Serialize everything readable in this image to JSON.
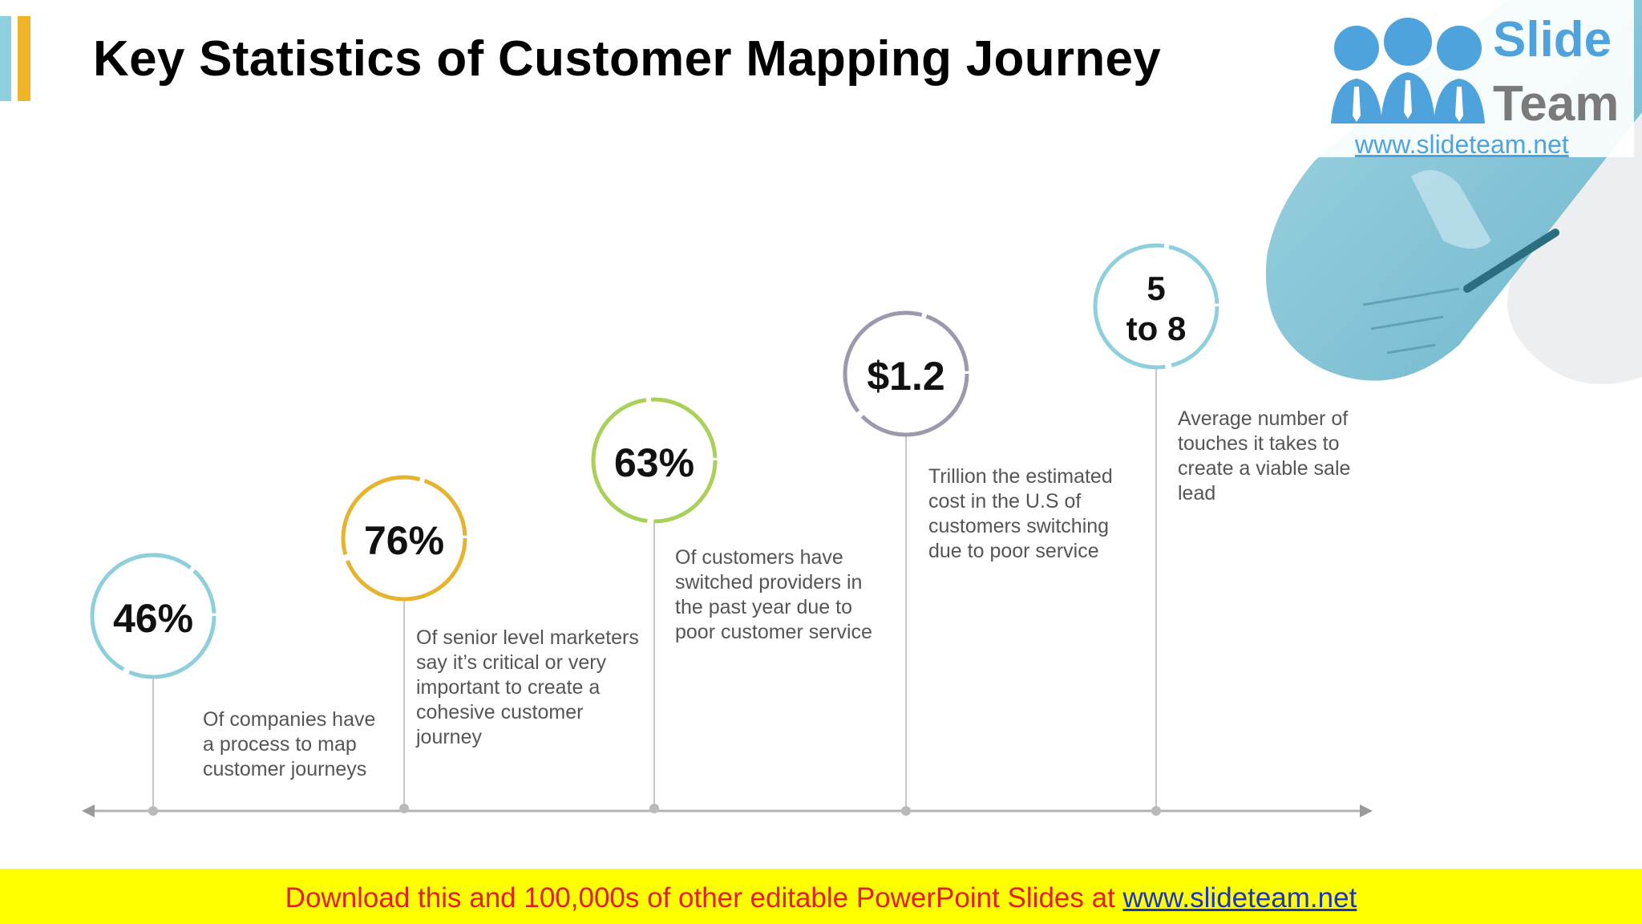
{
  "title": "Key Statistics of Customer Mapping Journey",
  "logo": {
    "word1": "Slide",
    "word2": "Team",
    "url": "www.slideteam.net"
  },
  "stats": [
    {
      "value": "46%",
      "text": "Of companies have a process to map customer journeys",
      "color": "#8ecfdc"
    },
    {
      "value": "76%",
      "text": "Of senior level marketers say it’s critical or very important to create a cohesive customer journey",
      "color": "#e6b32e"
    },
    {
      "value": "63%",
      "text": "Of customers have switched providers in the past year due to poor customer service",
      "color": "#a9d15a"
    },
    {
      "value": "$1.2",
      "text": "Trillion the estimated cost in the U.S of customers switching due to poor service",
      "color": "#9d98ad"
    },
    {
      "value_line1": "5",
      "value_line2": "to 8",
      "text": "Average number of touches it takes to create a viable sale lead",
      "color": "#8ecfdc"
    }
  ],
  "footer": {
    "text": "Download this and 100,000s of other editable PowerPoint Slides at ",
    "link": "www.slideteam.net"
  }
}
